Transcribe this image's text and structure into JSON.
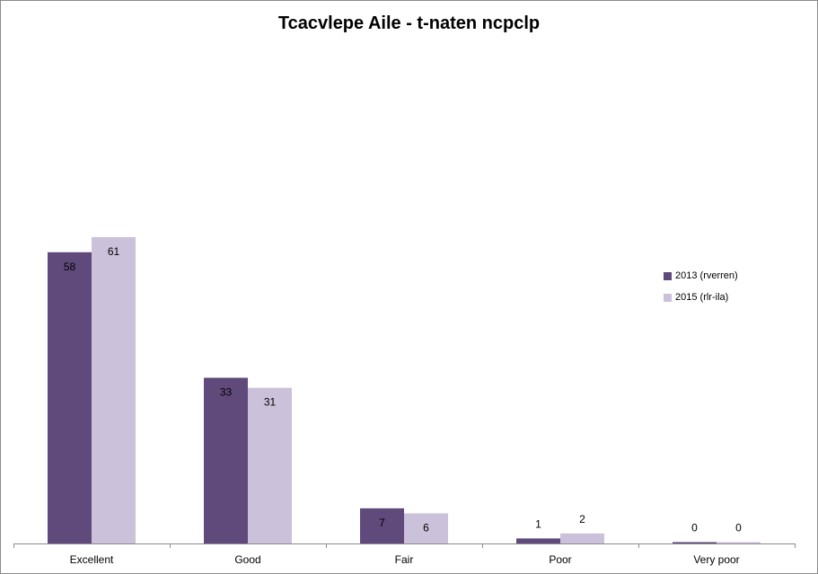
{
  "chart_data": {
    "type": "bar",
    "title": "Tcacvlepe Aile - t-naten ncpclp",
    "categories": [
      "Excellent",
      "Good",
      "Fair",
      "Poor",
      "Very poor"
    ],
    "series": [
      {
        "name": "2013 (rverren)",
        "values": [
          58,
          33,
          7,
          1,
          0
        ],
        "color": "#604a7b"
      },
      {
        "name": "2015 (rlr-ila)",
        "values": [
          61,
          31,
          6,
          2,
          0
        ],
        "color": "#ccc1da"
      }
    ],
    "xlabel": "",
    "ylabel": "",
    "ylim": [
      0,
      100
    ],
    "grid": false,
    "legend_position": "right"
  }
}
